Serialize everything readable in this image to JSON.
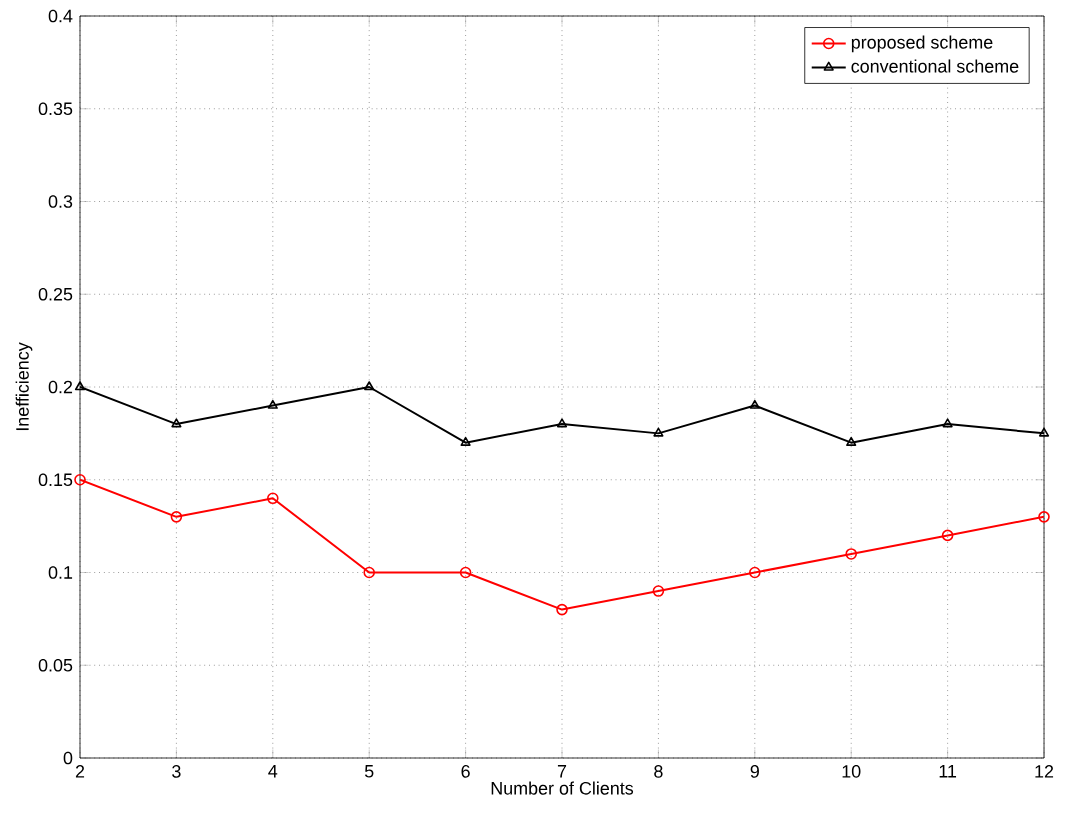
{
  "chart_data": {
    "type": "line",
    "xlabel": "Number of Clients",
    "ylabel": "Inefficiency",
    "x": [
      2,
      3,
      4,
      5,
      6,
      7,
      8,
      9,
      10,
      11,
      12
    ],
    "series": [
      {
        "name": "proposed scheme",
        "color": "#ff0000",
        "marker": "circle",
        "values": [
          0.15,
          0.13,
          0.14,
          0.1,
          0.1,
          0.08,
          0.09,
          0.1,
          0.11,
          0.12,
          0.13
        ]
      },
      {
        "name": "conventional scheme",
        "color": "#000000",
        "marker": "triangle",
        "values": [
          0.2,
          0.18,
          0.19,
          0.2,
          0.17,
          0.18,
          0.175,
          0.19,
          0.17,
          0.18,
          0.175
        ]
      }
    ],
    "xlim": [
      2,
      12
    ],
    "ylim": [
      0,
      0.4
    ],
    "xticks": [
      2,
      3,
      4,
      5,
      6,
      7,
      8,
      9,
      10,
      11,
      12
    ],
    "yticks": [
      0,
      0.05,
      0.1,
      0.15,
      0.2,
      0.25,
      0.3,
      0.35,
      0.4
    ],
    "grid": true,
    "legend": "top right",
    "line_style": "solid"
  }
}
